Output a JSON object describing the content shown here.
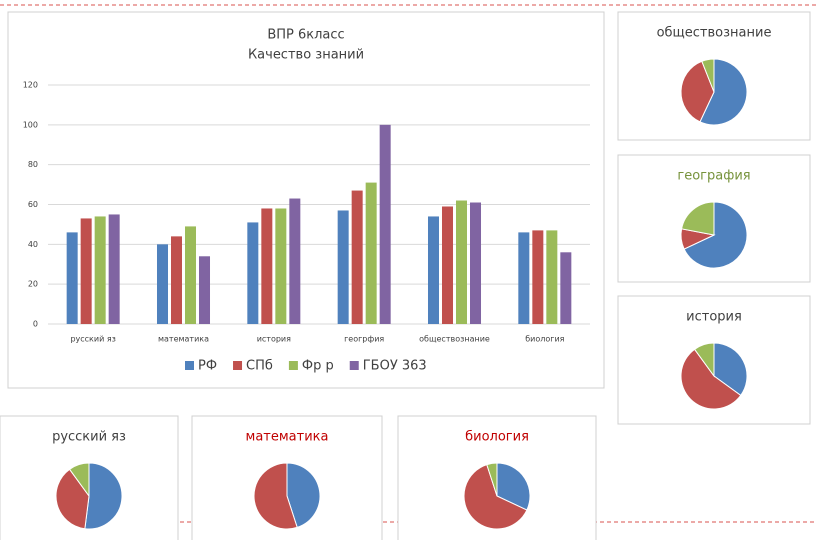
{
  "chart_data": [
    {
      "type": "bar",
      "title": "ВПР 6класс",
      "subtitle": "Качество знаний",
      "categories": [
        "русский яз",
        "математика",
        "история",
        "геогрфия",
        "обществознание",
        "биология"
      ],
      "series": [
        {
          "name": "РФ",
          "color": "#4f81bd",
          "values": [
            46,
            40,
            51,
            57,
            54,
            46
          ]
        },
        {
          "name": "СПб",
          "color": "#c0504d",
          "values": [
            53,
            44,
            58,
            67,
            59,
            47
          ]
        },
        {
          "name": "Фр р",
          "color": "#9bbb59",
          "values": [
            54,
            49,
            58,
            71,
            62,
            47
          ]
        },
        {
          "name": "ГБОУ 363",
          "color": "#8064a2",
          "values": [
            55,
            34,
            63,
            100,
            61,
            36
          ]
        }
      ],
      "ylim": [
        0,
        120
      ],
      "yticks": [
        0,
        20,
        40,
        60,
        80,
        100,
        120
      ],
      "grid": true,
      "legend": "bottom"
    },
    {
      "type": "pie",
      "title": "обществознание",
      "title_color": "#404040",
      "values": [
        57,
        37,
        6
      ],
      "colors": [
        "#4f81bd",
        "#c0504d",
        "#9bbb59"
      ]
    },
    {
      "type": "pie",
      "title": "география",
      "title_color": "#77933c",
      "values": [
        68,
        10,
        22
      ],
      "colors": [
        "#4f81bd",
        "#c0504d",
        "#9bbb59"
      ]
    },
    {
      "type": "pie",
      "title": "история",
      "title_color": "#404040",
      "values": [
        35,
        55,
        10
      ],
      "colors": [
        "#4f81bd",
        "#c0504d",
        "#9bbb59"
      ]
    },
    {
      "type": "pie",
      "title": "русский яз",
      "title_color": "#404040",
      "values": [
        52,
        38,
        10
      ],
      "colors": [
        "#4f81bd",
        "#c0504d",
        "#9bbb59"
      ]
    },
    {
      "type": "pie",
      "title": "математика",
      "title_color": "#c00000",
      "values": [
        45,
        55,
        0
      ],
      "colors": [
        "#4f81bd",
        "#c0504d",
        "#9bbb59"
      ]
    },
    {
      "type": "pie",
      "title": "биология",
      "title_color": "#c00000",
      "values": [
        32,
        63,
        5
      ],
      "colors": [
        "#4f81bd",
        "#c0504d",
        "#9bbb59"
      ]
    }
  ]
}
